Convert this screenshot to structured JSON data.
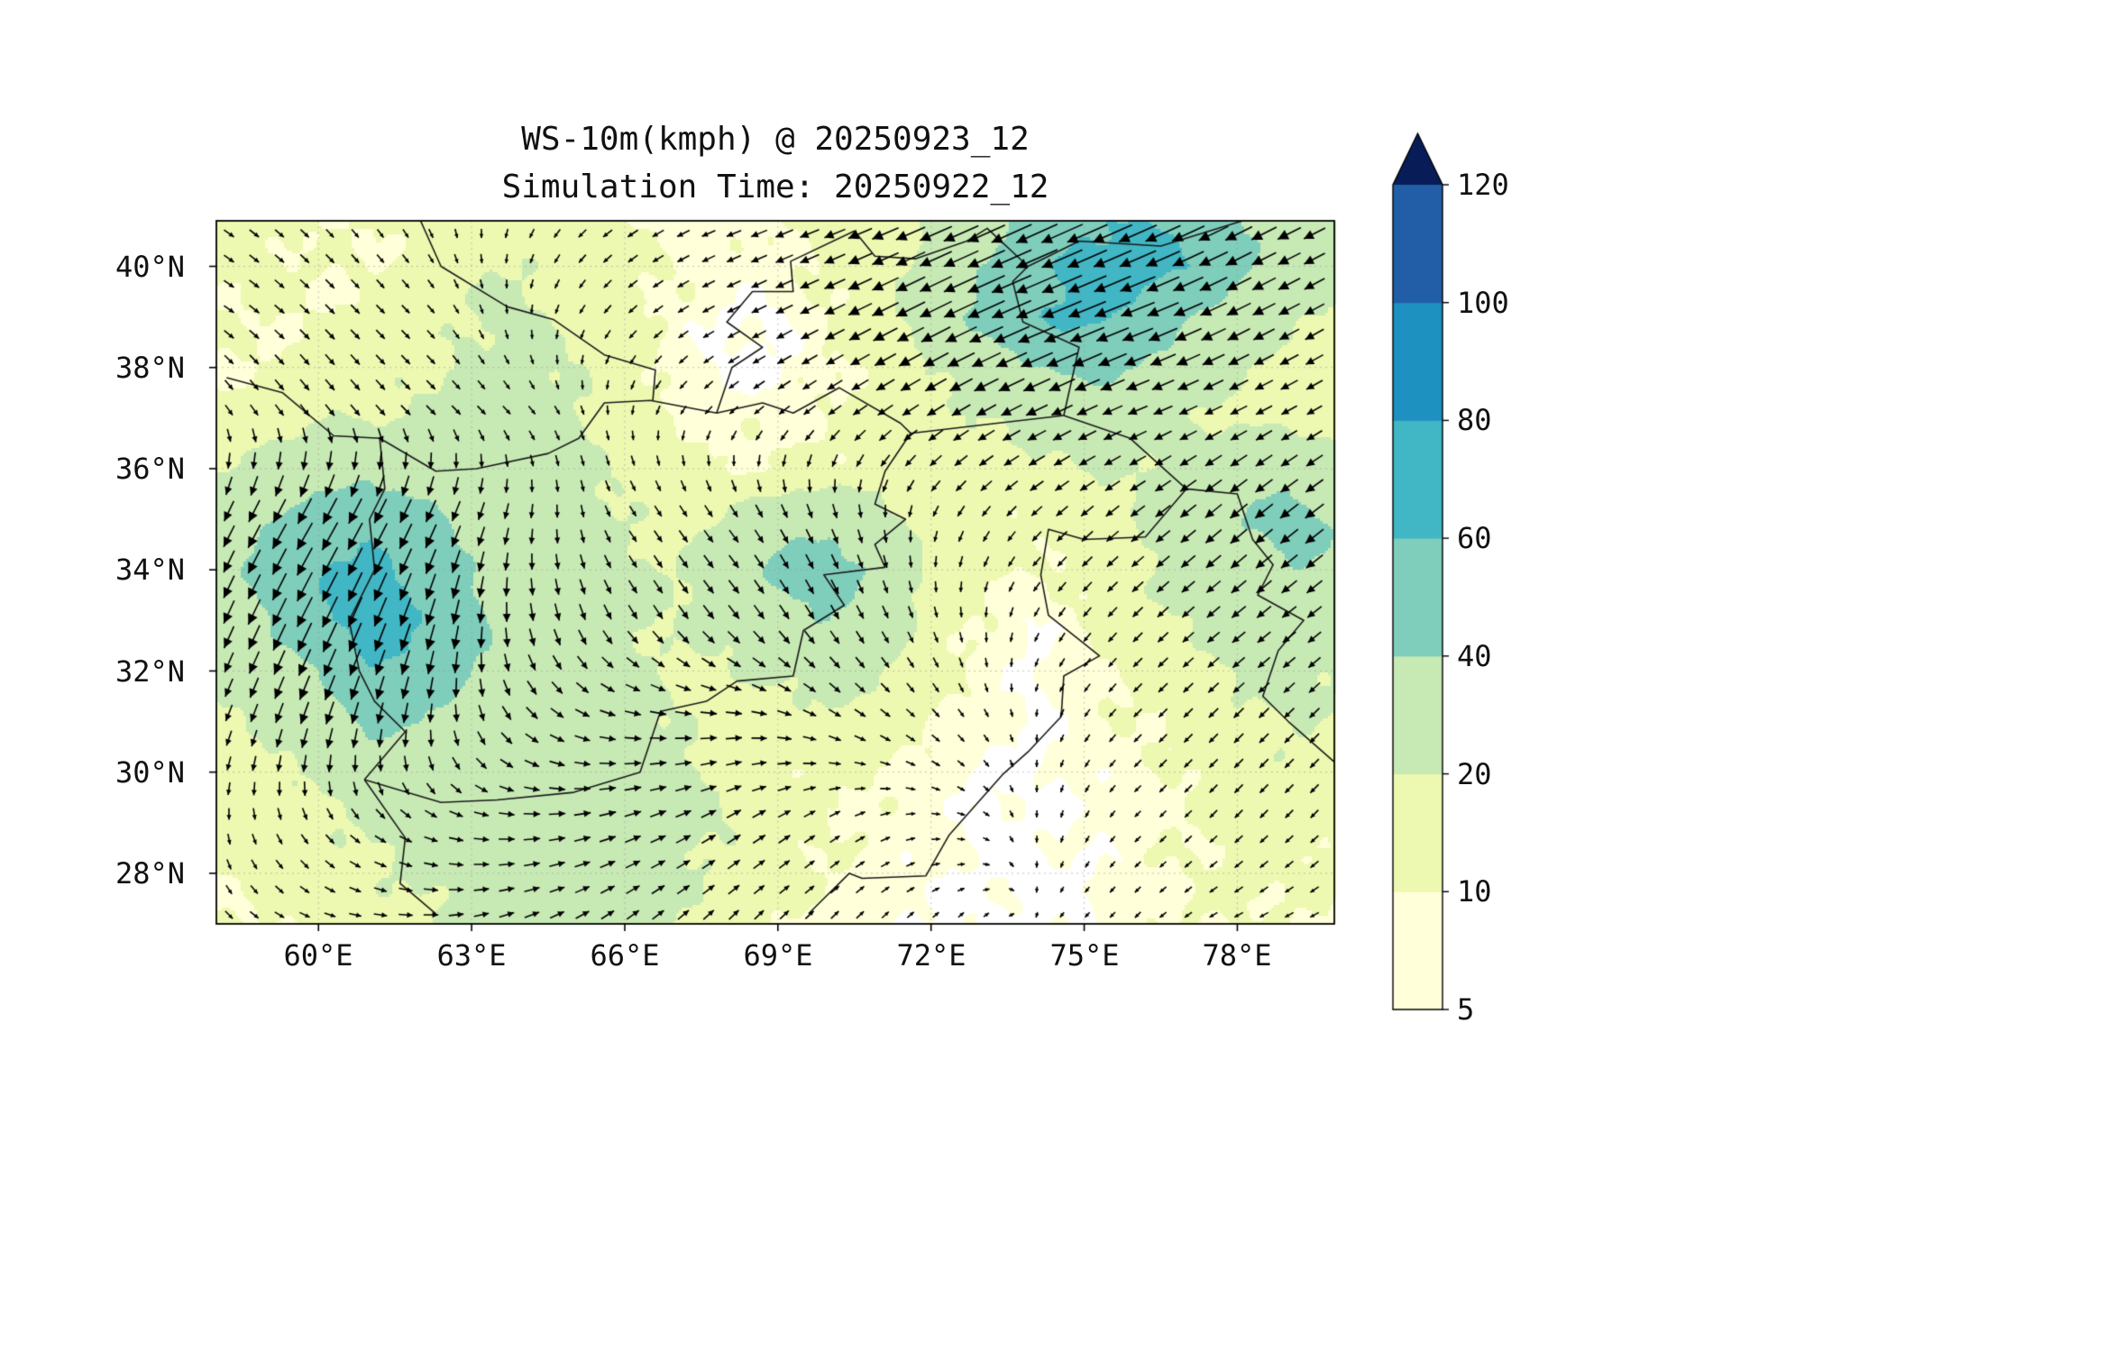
{
  "figure": {
    "title_line1": "WS-10m(kmph) @ 20250923_12",
    "title_line2": "Simulation Time: 20250922_12"
  },
  "chart_data": {
    "type": "heatmap",
    "title": "WS-10m(kmph) @ 20250923_12",
    "subtitle": "Simulation Time: 20250922_12",
    "variable": "WS-10m",
    "units": "kmph",
    "valid_time": "20250923_12",
    "simulation_time": "20250922_12",
    "overlay": "wind-vector-quiver",
    "x_ticks": [
      "60°E",
      "63°E",
      "66°E",
      "69°E",
      "72°E",
      "75°E",
      "78°E"
    ],
    "y_ticks": [
      "28°N",
      "30°N",
      "32°N",
      "34°N",
      "36°N",
      "38°N",
      "40°N"
    ],
    "lon_range": [
      58.0,
      79.9
    ],
    "lat_range": [
      27.0,
      40.9
    ],
    "grid_on": true,
    "legend_position": "right-colorbar",
    "colorbar": {
      "levels": [
        5,
        10,
        20,
        40,
        60,
        80,
        100,
        120
      ],
      "tick_labels": [
        "5",
        "10",
        "20",
        "40",
        "60",
        "80",
        "100",
        "120"
      ],
      "colors": [
        "#ffffd9",
        "#edf8b1",
        "#c7e9b4",
        "#7fcdbb",
        "#41b6c4",
        "#1d91c0",
        "#225ea8"
      ],
      "extend": "max",
      "extend_color": "#081d58",
      "under_color": "#ffffff"
    },
    "speed_grid": {
      "lon_start": 58,
      "lon_step": 1,
      "lat_start": 41,
      "lat_step": -1,
      "values": [
        [
          12,
          12,
          10,
          10,
          12,
          15,
          15,
          12,
          10,
          8,
          8,
          10,
          12,
          15,
          20,
          30,
          45,
          55,
          60,
          55,
          40,
          30,
          25
        ],
        [
          12,
          12,
          10,
          10,
          12,
          18,
          20,
          15,
          12,
          10,
          8,
          8,
          12,
          15,
          25,
          40,
          55,
          65,
          70,
          60,
          45,
          30,
          22
        ],
        [
          10,
          10,
          10,
          12,
          15,
          20,
          22,
          18,
          12,
          8,
          4,
          4,
          10,
          15,
          30,
          45,
          60,
          65,
          55,
          40,
          30,
          22,
          18
        ],
        [
          10,
          10,
          12,
          15,
          18,
          22,
          25,
          20,
          15,
          8,
          4,
          4,
          10,
          12,
          20,
          30,
          40,
          45,
          40,
          30,
          22,
          18,
          15
        ],
        [
          12,
          15,
          18,
          20,
          22,
          25,
          25,
          22,
          15,
          10,
          8,
          8,
          10,
          12,
          15,
          20,
          25,
          30,
          25,
          20,
          18,
          15,
          12
        ],
        [
          20,
          25,
          30,
          35,
          30,
          28,
          25,
          22,
          18,
          12,
          10,
          10,
          12,
          15,
          15,
          15,
          18,
          20,
          20,
          25,
          30,
          35,
          30
        ],
        [
          30,
          40,
          50,
          55,
          45,
          35,
          28,
          25,
          20,
          15,
          20,
          30,
          35,
          25,
          15,
          12,
          12,
          15,
          20,
          30,
          40,
          45,
          40
        ],
        [
          35,
          45,
          60,
          65,
          55,
          40,
          30,
          25,
          22,
          20,
          30,
          45,
          50,
          35,
          18,
          12,
          10,
          12,
          18,
          25,
          35,
          40,
          35
        ],
        [
          30,
          40,
          55,
          70,
          60,
          45,
          30,
          25,
          22,
          20,
          25,
          35,
          40,
          30,
          15,
          10,
          4,
          10,
          15,
          20,
          28,
          32,
          28
        ],
        [
          22,
          30,
          40,
          60,
          55,
          40,
          28,
          25,
          22,
          18,
          18,
          22,
          28,
          22,
          12,
          8,
          4,
          8,
          12,
          15,
          22,
          25,
          22
        ],
        [
          18,
          22,
          30,
          45,
          40,
          32,
          28,
          28,
          25,
          20,
          15,
          15,
          18,
          15,
          10,
          8,
          4,
          8,
          10,
          12,
          18,
          20,
          18
        ],
        [
          15,
          18,
          22,
          30,
          30,
          30,
          30,
          32,
          30,
          25,
          18,
          12,
          12,
          10,
          8,
          4,
          4,
          6,
          8,
          10,
          15,
          18,
          15
        ],
        [
          12,
          15,
          18,
          22,
          25,
          28,
          30,
          32,
          30,
          25,
          20,
          15,
          10,
          8,
          8,
          4,
          4,
          6,
          8,
          10,
          12,
          15,
          12
        ],
        [
          10,
          12,
          15,
          18,
          22,
          25,
          28,
          30,
          28,
          22,
          18,
          12,
          10,
          8,
          6,
          4,
          4,
          4,
          8,
          10,
          12,
          12,
          10
        ],
        [
          10,
          10,
          12,
          15,
          18,
          22,
          25,
          28,
          25,
          20,
          15,
          10,
          8,
          6,
          4,
          4,
          4,
          4,
          8,
          10,
          10,
          10,
          8
        ]
      ]
    },
    "wind_vectors": {
      "lon_start": 58,
      "lon_step": 2,
      "lat_start": 41,
      "lat_step": -2,
      "u": [
        [
          3,
          2,
          1,
          -1,
          -3,
          -5,
          -8,
          -14,
          -20,
          -18,
          -12,
          -8
        ],
        [
          3,
          3,
          2,
          0,
          -2,
          -4,
          -8,
          -14,
          -19,
          -15,
          -10,
          -7
        ],
        [
          2,
          3,
          3,
          2,
          0,
          -2,
          -4,
          -6,
          -8,
          -7,
          -6,
          -5
        ],
        [
          -4,
          -7,
          -5,
          -1,
          2,
          3,
          2,
          -1,
          -3,
          -5,
          -7,
          -8
        ],
        [
          -4,
          -7,
          -4,
          1,
          3,
          4,
          3,
          1,
          -1,
          -3,
          -5,
          -5
        ],
        [
          -2,
          -3,
          -1,
          4,
          6,
          6,
          4,
          2,
          0,
          -2,
          -3,
          -3
        ],
        [
          0,
          2,
          4,
          6,
          6,
          5,
          3,
          2,
          0,
          -1,
          -2,
          -2
        ],
        [
          2,
          3,
          5,
          5,
          4,
          3,
          2,
          1,
          0,
          -1,
          -2,
          -2
        ]
      ],
      "v": [
        [
          -2,
          -2,
          -2,
          -2,
          -2,
          -2,
          -3,
          -6,
          -9,
          -8,
          -6,
          -4
        ],
        [
          -2,
          -3,
          -2,
          -2,
          -2,
          -2,
          -4,
          -7,
          -8,
          -6,
          -5,
          -4
        ],
        [
          -3,
          -4,
          -3,
          -2,
          -2,
          -2,
          -3,
          -4,
          -4,
          -3,
          -3,
          -3
        ],
        [
          -8,
          -12,
          -10,
          -5,
          -3,
          -4,
          -5,
          -3,
          -3,
          -4,
          -6,
          -6
        ],
        [
          -9,
          -14,
          -12,
          -7,
          -5,
          -5,
          -5,
          -3,
          -2,
          -3,
          -4,
          -4
        ],
        [
          -5,
          -9,
          -7,
          -4,
          -1,
          0,
          -2,
          -2,
          -1,
          -2,
          -3,
          -3
        ],
        [
          -3,
          -3,
          -2,
          0,
          2,
          3,
          2,
          0,
          -1,
          -1,
          -2,
          -2
        ],
        [
          -2,
          -1,
          0,
          2,
          3,
          3,
          2,
          1,
          0,
          -1,
          -1,
          -1
        ]
      ]
    },
    "borders": [
      [
        [
          60.9,
          29.85
        ],
        [
          61.7,
          30.8
        ],
        [
          61.1,
          31.4
        ],
        [
          60.8,
          32.0
        ],
        [
          60.6,
          33.0
        ],
        [
          61.1,
          34.0
        ],
        [
          61.0,
          35.0
        ],
        [
          61.3,
          35.6
        ],
        [
          61.2,
          36.6
        ]
      ],
      [
        [
          58.2,
          37.8
        ],
        [
          59.3,
          37.5
        ],
        [
          60.3,
          36.65
        ],
        [
          61.2,
          36.6
        ]
      ],
      [
        [
          61.2,
          36.6
        ],
        [
          62.3,
          35.95
        ],
        [
          63.1,
          36.0
        ],
        [
          64.5,
          36.3
        ],
        [
          65.1,
          36.6
        ],
        [
          65.6,
          37.3
        ],
        [
          66.5,
          37.35
        ],
        [
          67.8,
          37.1
        ],
        [
          68.7,
          37.3
        ],
        [
          69.3,
          37.1
        ],
        [
          70.2,
          37.6
        ],
        [
          71.4,
          36.9
        ],
        [
          71.6,
          36.7
        ],
        [
          73.3,
          36.9
        ],
        [
          74.6,
          37.05
        ]
      ],
      [
        [
          71.6,
          36.7
        ],
        [
          71.1,
          35.95
        ],
        [
          70.9,
          35.3
        ],
        [
          71.5,
          35.0
        ],
        [
          70.9,
          34.5
        ],
        [
          71.1,
          34.05
        ],
        [
          69.9,
          33.9
        ],
        [
          70.3,
          33.3
        ],
        [
          69.5,
          32.8
        ],
        [
          69.3,
          31.9
        ],
        [
          68.2,
          31.8
        ],
        [
          67.6,
          31.4
        ],
        [
          66.7,
          31.2
        ],
        [
          66.3,
          30.0
        ],
        [
          65.0,
          29.6
        ],
        [
          63.5,
          29.45
        ],
        [
          62.4,
          29.4
        ],
        [
          60.9,
          29.85
        ]
      ],
      [
        [
          60.9,
          29.85
        ],
        [
          61.7,
          28.7
        ],
        [
          61.6,
          27.8
        ],
        [
          62.3,
          27.2
        ]
      ],
      [
        [
          74.6,
          37.05
        ],
        [
          75.9,
          36.6
        ],
        [
          77.0,
          35.6
        ],
        [
          76.2,
          34.65
        ],
        [
          75.0,
          34.6
        ],
        [
          74.3,
          34.8
        ],
        [
          74.15,
          33.9
        ],
        [
          74.3,
          33.1
        ],
        [
          75.3,
          32.3
        ],
        [
          74.6,
          31.9
        ],
        [
          74.55,
          31.1
        ],
        [
          73.9,
          30.4
        ],
        [
          73.4,
          29.95
        ],
        [
          72.35,
          28.75
        ],
        [
          71.9,
          27.95
        ],
        [
          70.65,
          27.9
        ],
        [
          70.4,
          28.0
        ],
        [
          69.6,
          27.2
        ]
      ],
      [
        [
          74.6,
          37.05
        ],
        [
          74.9,
          38.4
        ],
        [
          73.8,
          38.9
        ],
        [
          73.6,
          39.7
        ],
        [
          73.9,
          40.0
        ],
        [
          74.9,
          40.5
        ],
        [
          76.5,
          40.4
        ],
        [
          78.1,
          40.9
        ]
      ],
      [
        [
          67.8,
          37.1
        ],
        [
          68.1,
          38.0
        ],
        [
          68.7,
          38.4
        ],
        [
          68.0,
          38.9
        ],
        [
          68.5,
          39.5
        ],
        [
          69.3,
          39.5
        ],
        [
          69.25,
          40.1
        ],
        [
          70.5,
          40.7
        ],
        [
          70.9,
          40.2
        ],
        [
          71.7,
          40.15
        ],
        [
          72.7,
          40.5
        ],
        [
          73.1,
          40.75
        ],
        [
          73.9,
          40.0
        ]
      ],
      [
        [
          62.0,
          40.9
        ],
        [
          62.4,
          40.0
        ],
        [
          63.7,
          39.2
        ],
        [
          64.6,
          38.95
        ],
        [
          65.6,
          38.25
        ],
        [
          66.6,
          37.95
        ],
        [
          66.55,
          37.35
        ]
      ],
      [
        [
          77.0,
          35.6
        ],
        [
          78.0,
          35.5
        ],
        [
          78.3,
          34.6
        ],
        [
          78.7,
          34.1
        ],
        [
          78.4,
          33.5
        ],
        [
          79.3,
          33.0
        ],
        [
          78.8,
          32.4
        ],
        [
          78.5,
          31.5
        ],
        [
          79.0,
          31.0
        ],
        [
          79.9,
          30.2
        ]
      ]
    ]
  }
}
